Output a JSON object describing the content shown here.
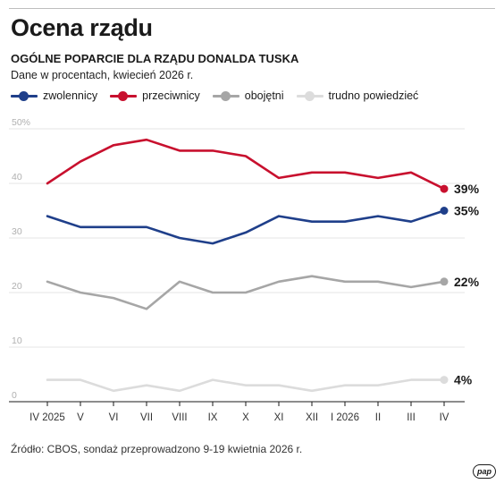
{
  "header": {
    "title": "Ocena rządu",
    "subtitle": "OGÓLNE POPARCIE DLA RZĄDU DONALDA TUSKA",
    "note": "Dane w procentach, kwiecień 2026 r."
  },
  "footer": {
    "source": "Źródło: CBOS, sondaż przeprowadzono 9-19 kwietnia 2026 r.",
    "logo": "pap"
  },
  "chart_data": {
    "type": "line",
    "ylim": [
      0,
      50
    ],
    "yticks": [
      0,
      10,
      20,
      30,
      40,
      50
    ],
    "ytick_labels": [
      "0",
      "10",
      "20",
      "30",
      "40",
      "50%"
    ],
    "grid": true,
    "legend_placement": "top",
    "categories": [
      "IV 2025",
      "V",
      "VI",
      "VII",
      "VIII",
      "IX",
      "X",
      "XI",
      "XII",
      "I 2026",
      "II",
      "III",
      "IV"
    ],
    "series": [
      {
        "name": "zwolennicy",
        "color": "#1f3f8a",
        "values": [
          34,
          32,
          32,
          32,
          30,
          29,
          31,
          34,
          33,
          33,
          34,
          33,
          35
        ],
        "end_label": "35%"
      },
      {
        "name": "przeciwnicy",
        "color": "#c8102e",
        "values": [
          40,
          44,
          47,
          48,
          46,
          46,
          45,
          41,
          42,
          42,
          41,
          42,
          39
        ],
        "end_label": "39%"
      },
      {
        "name": "obojętni",
        "color": "#a6a6a6",
        "values": [
          22,
          20,
          19,
          17,
          22,
          20,
          20,
          22,
          23,
          22,
          22,
          21,
          22
        ],
        "end_label": "22%"
      },
      {
        "name": "trudno powiedzieć",
        "color": "#dcdcdc",
        "values": [
          4,
          4,
          2,
          3,
          2,
          4,
          3,
          3,
          2,
          3,
          3,
          4,
          4
        ],
        "end_label": "4%"
      }
    ]
  }
}
